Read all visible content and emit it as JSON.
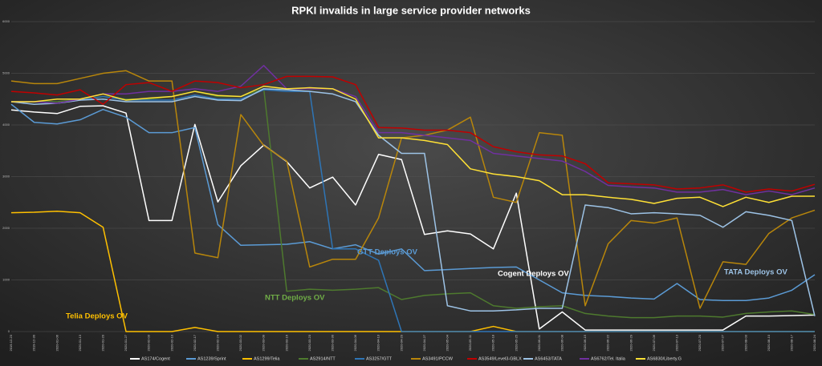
{
  "chart_data": {
    "type": "line",
    "title": "RPKI invalids in large service provider networks",
    "categories": [
      "2019-12-23",
      "2019-12-30",
      "2020-01-06",
      "2020-01-13",
      "2020-01-20",
      "2020-01-27",
      "2020-02-03",
      "2020-02-10",
      "2020-02-17",
      "2020-02-24",
      "2020-03-02",
      "2020-03-09",
      "2020-03-16",
      "2020-03-23",
      "2020-03-30",
      "2020-04-06",
      "2020-04-13",
      "2020-04-20",
      "2020-04-27",
      "2020-05-04",
      "2020-05-11",
      "2020-05-18",
      "2020-05-25",
      "2020-06-01",
      "2020-06-08",
      "2020-06-15",
      "2020-06-22",
      "2020-06-29",
      "2020-07-06",
      "2020-07-13",
      "2020-07-20",
      "2020-07-27",
      "2020-08-03",
      "2020-08-10",
      "2020-08-17",
      "2020-08-24"
    ],
    "ylim": [
      0,
      6000
    ],
    "yticks": [
      0,
      1000,
      2000,
      3000,
      4000,
      5000,
      6000
    ],
    "grid": true,
    "series": [
      {
        "name": "AS174/Cogent",
        "color": "#ffffff",
        "values": [
          4290,
          4250,
          4220,
          4360,
          4370,
          4230,
          2150,
          2150,
          4010,
          2510,
          3210,
          3610,
          3290,
          2780,
          2990,
          2450,
          3430,
          3330,
          1880,
          1950,
          1890,
          1600,
          2680,
          50,
          380,
          30,
          30,
          30,
          30,
          30,
          30,
          30,
          300,
          300,
          310,
          320
        ]
      },
      {
        "name": "AS1239/Sprint",
        "color": "#5b9bd5",
        "values": [
          4400,
          4050,
          4020,
          4100,
          4300,
          4150,
          3850,
          3850,
          3950,
          2070,
          1670,
          1680,
          1690,
          1740,
          1600,
          1680,
          1500,
          1600,
          1180,
          1200,
          1220,
          1240,
          1250,
          1000,
          750,
          700,
          680,
          650,
          630,
          930,
          620,
          600,
          600,
          650,
          800,
          1100
        ]
      },
      {
        "name": "AS1299/Telia",
        "color": "#ffc000",
        "values": [
          2300,
          2310,
          2330,
          2300,
          2020,
          0,
          0,
          0,
          80,
          0,
          0,
          0,
          0,
          0,
          0,
          0,
          0,
          0,
          0,
          0,
          0,
          100,
          0,
          0,
          0,
          0,
          0,
          0,
          0,
          0,
          0,
          0,
          0,
          0,
          0,
          0
        ]
      },
      {
        "name": "AS2914/NTT",
        "color": "#4e7a2e",
        "values": [
          4450,
          4450,
          4450,
          4500,
          4550,
          4500,
          4500,
          4550,
          4650,
          4550,
          4550,
          4700,
          780,
          820,
          800,
          820,
          850,
          620,
          700,
          730,
          750,
          500,
          450,
          480,
          500,
          350,
          300,
          270,
          270,
          300,
          300,
          280,
          350,
          380,
          400,
          330
        ]
      },
      {
        "name": "AS3257/GTT",
        "color": "#2e75b6",
        "values": [
          4450,
          4450,
          4420,
          4480,
          4550,
          4480,
          4480,
          4480,
          4580,
          4500,
          4500,
          4680,
          4650,
          4650,
          1600,
          1600,
          1380,
          0,
          0,
          0,
          0,
          0,
          0,
          0,
          0,
          0,
          0,
          0,
          0,
          0,
          0,
          0,
          0,
          0,
          0,
          0
        ]
      },
      {
        "name": "AS3491/PCCW",
        "color": "#b8860b",
        "values": [
          4850,
          4800,
          4800,
          4900,
          5000,
          5050,
          4850,
          4850,
          1520,
          1430,
          4200,
          3600,
          3300,
          1250,
          1400,
          1400,
          2200,
          3750,
          3800,
          3900,
          4150,
          2600,
          2500,
          3850,
          3800,
          500,
          1700,
          2150,
          2100,
          2200,
          450,
          1350,
          1300,
          1900,
          2200,
          2350
        ]
      },
      {
        "name": "AS3549/Level3-GBLX",
        "color": "#c00000",
        "values": [
          4650,
          4620,
          4580,
          4680,
          4400,
          4780,
          4820,
          4650,
          4850,
          4820,
          4720,
          4780,
          4940,
          4940,
          4930,
          4780,
          3950,
          3940,
          3900,
          3900,
          3850,
          3580,
          3480,
          3420,
          3400,
          3250,
          2880,
          2860,
          2840,
          2760,
          2780,
          2840,
          2700,
          2760,
          2720,
          2850
        ]
      },
      {
        "name": "AS6453/TATA",
        "color": "#9dc3e6",
        "values": [
          4450,
          4400,
          4420,
          4480,
          4500,
          4450,
          4450,
          4450,
          4550,
          4480,
          4470,
          4700,
          4680,
          4650,
          4600,
          4450,
          3800,
          3450,
          3450,
          500,
          400,
          400,
          420,
          450,
          450,
          2450,
          2400,
          2280,
          2300,
          2280,
          2250,
          2020,
          2320,
          2250,
          2150,
          300
        ]
      },
      {
        "name": "AS6762/Tel. Italia",
        "color": "#7030a0",
        "values": [
          4450,
          4450,
          4420,
          4500,
          4600,
          4600,
          4650,
          4650,
          4700,
          4650,
          4750,
          5150,
          4700,
          4700,
          4700,
          4550,
          3850,
          3850,
          3800,
          3750,
          3700,
          3450,
          3400,
          3350,
          3300,
          3100,
          2830,
          2800,
          2780,
          2700,
          2700,
          2750,
          2650,
          2720,
          2650,
          2780
        ]
      },
      {
        "name": "AS6830/Liberty.G",
        "color": "#ffe135",
        "values": [
          4450,
          4450,
          4500,
          4500,
          4600,
          4480,
          4520,
          4550,
          4650,
          4570,
          4550,
          4750,
          4700,
          4720,
          4700,
          4500,
          3750,
          3750,
          3700,
          3620,
          3150,
          3050,
          3000,
          2920,
          2650,
          2650,
          2600,
          2560,
          2480,
          2580,
          2600,
          2420,
          2600,
          2500,
          2620,
          2620
        ]
      }
    ],
    "annotations": [
      {
        "text": "Telia Deploys OV",
        "color": "#ffc000"
      },
      {
        "text": "NTT Deploys OV",
        "color": "#70ad47"
      },
      {
        "text": "GTT Deploys OV",
        "color": "#5b9bd5"
      },
      {
        "text": "Cogent Deploys OV",
        "color": "#ffffff"
      },
      {
        "text": "TATA Deploys OV",
        "color": "#9dc3e6"
      }
    ]
  }
}
